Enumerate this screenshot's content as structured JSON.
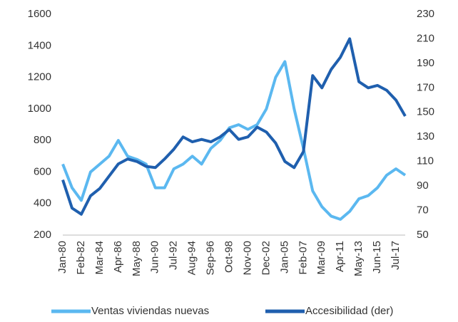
{
  "chart_data": {
    "type": "line",
    "categories": [
      "Jan-80",
      null,
      "Feb-82",
      null,
      "Mar-84",
      null,
      "Apr-86",
      null,
      "May-88",
      null,
      "Jun-90",
      null,
      "Jul-92",
      null,
      "Aug-94",
      null,
      "Sep-96",
      null,
      "Oct-98",
      null,
      "Nov-00",
      null,
      "Dec-02",
      null,
      "Jan-05",
      null,
      "Feb-07",
      null,
      "Mar-09",
      null,
      "Apr-11",
      null,
      "May-13",
      null,
      "Jun-15",
      null,
      "Jul-17",
      null
    ],
    "series": [
      {
        "name": "Ventas viviendas nuevas",
        "color": "#5bb8f0",
        "values": [
          650,
          500,
          420,
          600,
          650,
          700,
          800,
          700,
          680,
          650,
          500,
          500,
          620,
          650,
          700,
          650,
          750,
          800,
          880,
          900,
          870,
          900,
          1000,
          1200,
          1300,
          1000,
          750,
          480,
          380,
          320,
          300,
          350,
          430,
          450,
          500,
          580,
          620,
          580
        ]
      },
      {
        "name": "Accesibilidad (der)",
        "color": "#1f5fae",
        "axis": "y2",
        "values": [
          95,
          72,
          67,
          82,
          88,
          98,
          108,
          112,
          110,
          106,
          105,
          112,
          120,
          130,
          126,
          128,
          126,
          130,
          136,
          128,
          130,
          138,
          134,
          125,
          110,
          105,
          118,
          180,
          170,
          185,
          195,
          210,
          175,
          170,
          172,
          168,
          160,
          147
        ]
      }
    ],
    "ylim": [
      200,
      1600
    ],
    "yticks": [
      200,
      400,
      600,
      800,
      1000,
      1200,
      1400,
      1600
    ],
    "y2lim": [
      50,
      230
    ],
    "y2ticks": [
      50,
      70,
      90,
      110,
      130,
      150,
      170,
      190,
      210,
      230
    ],
    "legend": "bottom"
  }
}
